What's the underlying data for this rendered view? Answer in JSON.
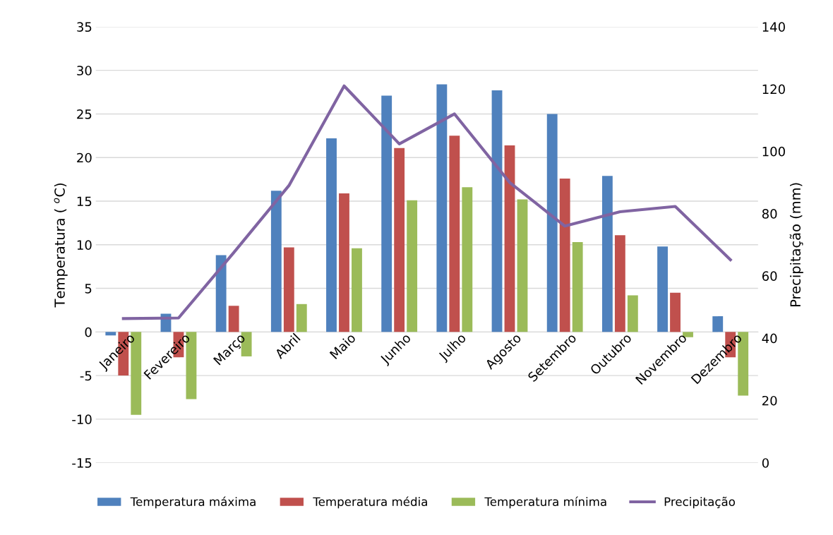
{
  "chart_data": {
    "type": "bar",
    "categories": [
      "Janeiro",
      "Fevereiro",
      "Março",
      "Abril",
      "Maio",
      "Junho",
      "Julho",
      "Agosto",
      "Setembro",
      "Outubro",
      "Novembro",
      "Dezembro"
    ],
    "series": [
      {
        "name": "Temperatura máxima",
        "color": "#4f81bd",
        "values": [
          -0.4,
          2.1,
          8.8,
          16.2,
          22.2,
          27.1,
          28.4,
          27.7,
          25.0,
          17.9,
          9.8,
          1.8
        ]
      },
      {
        "name": "Temperatura média",
        "color": "#c0504d",
        "values": [
          -5.0,
          -2.9,
          3.0,
          9.7,
          15.9,
          21.1,
          22.5,
          21.4,
          17.6,
          11.1,
          4.5,
          -2.9
        ]
      },
      {
        "name": "Temperatura mínima",
        "color": "#9bbb59",
        "values": [
          -9.5,
          -7.7,
          -2.8,
          3.2,
          9.6,
          15.1,
          16.6,
          15.2,
          10.3,
          4.2,
          -0.6,
          -7.3
        ]
      },
      {
        "name": "Precipitação",
        "type": "line",
        "axis": "y2",
        "color": "#8064a2",
        "values": [
          46.3,
          46.5,
          67.5,
          89,
          121,
          102.4,
          112,
          90,
          76,
          80.6,
          82.3,
          65.2
        ]
      }
    ],
    "ylabel": "Temperatura ( $^{o}$C)",
    "y2label": "Precipitação (mm)",
    "ylim": [
      -15,
      35
    ],
    "yticks": [
      -15,
      -10,
      -5,
      0,
      5,
      10,
      15,
      20,
      25,
      30,
      35
    ],
    "y2lim": [
      0,
      140
    ],
    "y2ticks": [
      0,
      20,
      40,
      60,
      80,
      100,
      120,
      140
    ],
    "grid": "y",
    "legend": "bottom"
  }
}
